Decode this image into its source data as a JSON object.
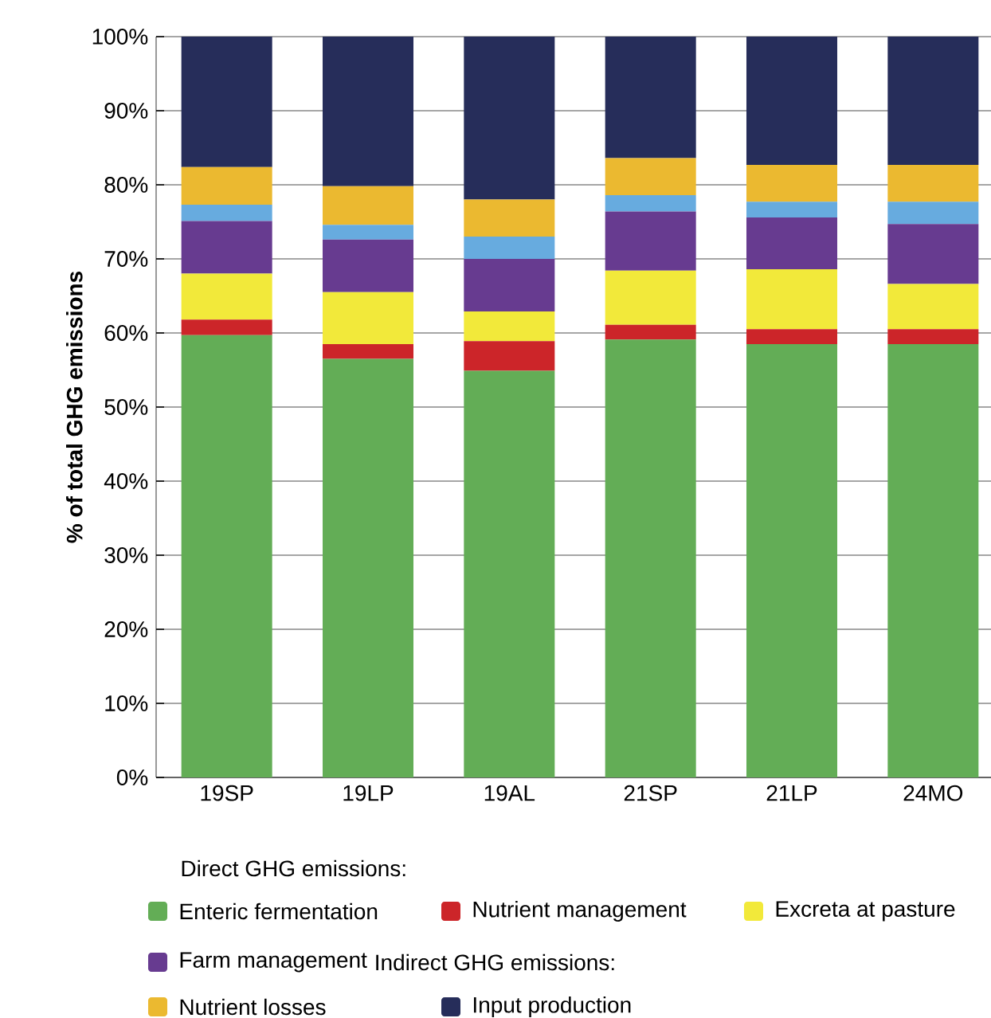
{
  "chart_data": {
    "type": "bar",
    "stacked": true,
    "ylabel": "% of total GHG emissions",
    "legend_title": "Direct GHG emissions:",
    "annotations": [
      "Indirect GHG emissions:"
    ],
    "categories": [
      "19SP",
      "19LP",
      "19AL",
      "21SP",
      "21LP",
      "24MO"
    ],
    "series": [
      {
        "name": "Enteric fermentation",
        "color": "#63ad56",
        "values": [
          59.7,
          56.5,
          54.9,
          59.1,
          58.5,
          58.5
        ]
      },
      {
        "name": "Nutrient management",
        "color": "#cc2529",
        "values": [
          2.1,
          2.0,
          4.0,
          2.0,
          2.0,
          2.0
        ]
      },
      {
        "name": "Excreta at pasture",
        "color": "#f2e93a",
        "values": [
          6.2,
          7.0,
          4.0,
          7.3,
          8.1,
          6.1
        ]
      },
      {
        "name": "Farm management",
        "color": "#673b90",
        "values": [
          7.1,
          7.1,
          7.1,
          8.0,
          7.0,
          8.1
        ]
      },
      {
        "color": "#67abdf",
        "values": [
          2.2,
          2.0,
          3.0,
          2.2,
          2.1,
          3.0
        ]
      },
      {
        "name": "Nutrient losses",
        "color": "#ebb930",
        "values": [
          5.1,
          5.2,
          5.0,
          5.0,
          5.0,
          5.0
        ]
      },
      {
        "name": "Input production",
        "color": "#262d5a",
        "values": [
          17.6,
          20.2,
          22.0,
          16.4,
          17.3,
          17.3
        ]
      }
    ],
    "ylim": [
      0,
      100
    ],
    "yticks": [
      {
        "value": 0,
        "label": "0%"
      },
      {
        "value": 10,
        "label": "10%"
      },
      {
        "value": 20,
        "label": "20%"
      },
      {
        "value": 30,
        "label": "30%"
      },
      {
        "value": 40,
        "label": "40%"
      },
      {
        "value": 50,
        "label": "50%"
      },
      {
        "value": 60,
        "label": "60%"
      },
      {
        "value": 70,
        "label": "70%"
      },
      {
        "value": 80,
        "label": "80%"
      },
      {
        "value": 90,
        "label": "90%"
      },
      {
        "value": 100,
        "label": "100%"
      }
    ],
    "grid": "y",
    "legend": "bottom"
  }
}
